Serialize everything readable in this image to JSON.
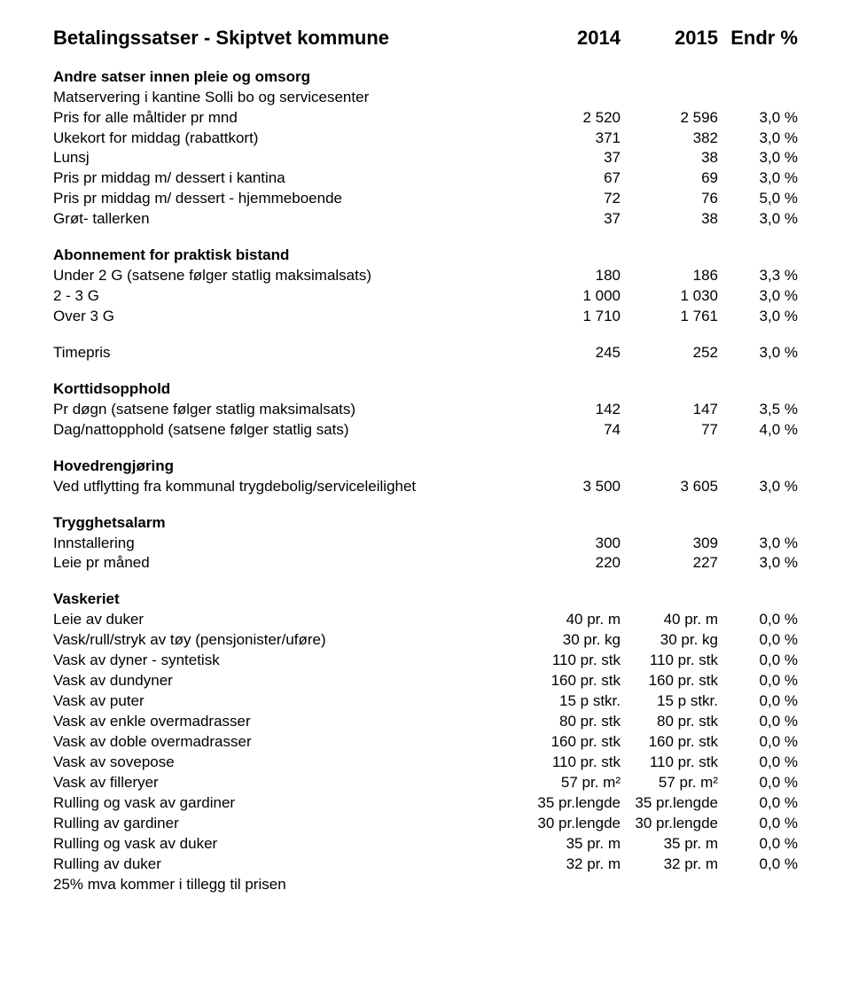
{
  "title": {
    "label": "Betalingssatser - Skiptvet kommune",
    "c1": "2014",
    "c2": "2015",
    "c3": "Endr %"
  },
  "sections": {
    "s1": {
      "heading": "Andre satser innen pleie og omsorg"
    },
    "s2": {
      "heading": "Abonnement for praktisk bistand"
    },
    "s3": {
      "heading": "Korttidsopphold"
    },
    "s4": {
      "heading": "Hovedrengjøring"
    },
    "s5": {
      "heading": "Trygghetsalarm"
    },
    "s6": {
      "heading": "Vaskeriet"
    }
  },
  "rows": {
    "r1": {
      "label": "Matservering i kantine Solli bo og servicesenter"
    },
    "r2": {
      "label": "Pris for alle måltider pr mnd",
      "c1": "2 520",
      "c2": "2 596",
      "c3": "3,0 %"
    },
    "r3": {
      "label": "Ukekort for middag (rabattkort)",
      "c1": "371",
      "c2": "382",
      "c3": "3,0 %"
    },
    "r4": {
      "label": "Lunsj",
      "c1": "37",
      "c2": "38",
      "c3": "3,0 %"
    },
    "r5": {
      "label": "Pris pr middag m/ dessert i kantina",
      "c1": "67",
      "c2": "69",
      "c3": "3,0 %"
    },
    "r6": {
      "label": "Pris pr middag m/ dessert - hjemmeboende",
      "c1": "72",
      "c2": "76",
      "c3": "5,0 %"
    },
    "r7": {
      "label": "Grøt- tallerken",
      "c1": "37",
      "c2": "38",
      "c3": "3,0 %"
    },
    "r8": {
      "label": "Under 2 G (satsene følger statlig maksimalsats)",
      "c1": "180",
      "c2": "186",
      "c3": "3,3 %"
    },
    "r9": {
      "label": "2 - 3 G",
      "c1": "1 000",
      "c2": "1 030",
      "c3": "3,0 %"
    },
    "r10": {
      "label": "Over 3 G",
      "c1": "1 710",
      "c2": "1 761",
      "c3": "3,0 %"
    },
    "r11": {
      "label": "Timepris",
      "c1": "245",
      "c2": "252",
      "c3": "3,0 %"
    },
    "r12": {
      "label": "Pr døgn (satsene følger statlig maksimalsats)",
      "c1": "142",
      "c2": "147",
      "c3": "3,5 %"
    },
    "r13": {
      "label": "Dag/nattopphold (satsene følger statlig sats)",
      "c1": "74",
      "c2": "77",
      "c3": "4,0 %"
    },
    "r14": {
      "label": "Ved utflytting fra kommunal trygdebolig/serviceleilighet",
      "c1": "3 500",
      "c2": "3 605",
      "c3": "3,0 %"
    },
    "r15": {
      "label": "Innstallering",
      "c1": "300",
      "c2": "309",
      "c3": "3,0 %"
    },
    "r16": {
      "label": "Leie pr måned",
      "c1": "220",
      "c2": "227",
      "c3": "3,0 %"
    },
    "r17": {
      "label": "Leie av duker",
      "c1": "40 pr. m",
      "c2": "40 pr. m",
      "c3": "0,0 %"
    },
    "r18": {
      "label": "Vask/rull/stryk av tøy (pensjonister/uføre)",
      "c1": "30 pr. kg",
      "c2": "30 pr. kg",
      "c3": "0,0 %"
    },
    "r19": {
      "label": "Vask av dyner - syntetisk",
      "c1": "110 pr. stk",
      "c2": "110 pr. stk",
      "c3": "0,0 %"
    },
    "r20": {
      "label": "Vask av dundyner",
      "c1": "160 pr. stk",
      "c2": "160 pr. stk",
      "c3": "0,0 %"
    },
    "r21": {
      "label": "Vask av puter",
      "c1": "15 p stkr.",
      "c2": "15 p stkr.",
      "c3": "0,0 %"
    },
    "r22": {
      "label": "Vask av enkle overmadrasser",
      "c1": "80 pr. stk",
      "c2": "80 pr. stk",
      "c3": "0,0 %"
    },
    "r23": {
      "label": "Vask av doble overmadrasser",
      "c1": "160 pr. stk",
      "c2": "160 pr. stk",
      "c3": "0,0 %"
    },
    "r24": {
      "label": "Vask av sovepose",
      "c1": "110 pr. stk",
      "c2": "110 pr. stk",
      "c3": "0,0 %"
    },
    "r25": {
      "label": "Vask av filleryer",
      "c1": "57 pr. m²",
      "c2": "57 pr. m²",
      "c3": "0,0 %"
    },
    "r26": {
      "label": "Rulling og vask av gardiner",
      "c1": "35 pr.lengde",
      "c2": "35 pr.lengde",
      "c3": "0,0 %"
    },
    "r27": {
      "label": "Rulling av gardiner",
      "c1": "30 pr.lengde",
      "c2": "30 pr.lengde",
      "c3": "0,0 %"
    },
    "r28": {
      "label": "Rulling og vask av duker",
      "c1": "35 pr. m",
      "c2": "35 pr. m",
      "c3": "0,0 %"
    },
    "r29": {
      "label": "Rulling av duker",
      "c1": "32 pr. m",
      "c2": "32 pr. m",
      "c3": "0,0 %"
    },
    "r30": {
      "label": "25% mva kommer i tillegg til prisen"
    }
  }
}
